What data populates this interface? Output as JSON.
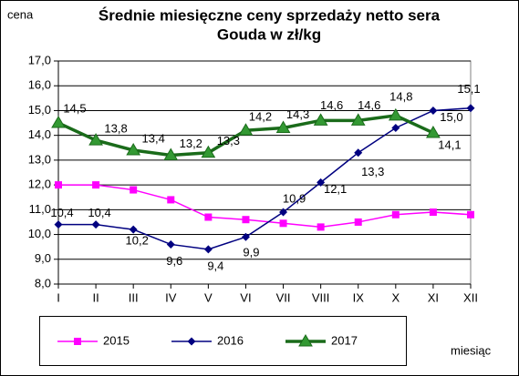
{
  "chart_data": {
    "type": "line",
    "title": [
      "Średnie miesięczne ceny sprzedaży netto sera",
      "Gouda w zł/kg"
    ],
    "y_label": "cena",
    "x_label": "miesiąc",
    "categories": [
      "I",
      "II",
      "III",
      "IV",
      "V",
      "VI",
      "VII",
      "VIII",
      "IX",
      "X",
      "XI",
      "XII"
    ],
    "series": [
      {
        "name": "2015",
        "color": "#ff00ff",
        "marker": "square",
        "values": [
          12.0,
          12.0,
          11.8,
          11.4,
          10.7,
          10.6,
          10.45,
          10.3,
          10.5,
          10.8,
          10.9,
          10.8
        ]
      },
      {
        "name": "2016",
        "color": "#000080",
        "marker": "diamond",
        "values": [
          10.4,
          10.4,
          10.2,
          9.6,
          9.4,
          9.9,
          10.9,
          12.1,
          13.3,
          14.3,
          15.0,
          15.1
        ],
        "value_labels": [
          "10,4",
          "10,4",
          "10,2",
          "9,6",
          "9,4",
          "9,9",
          "10,9",
          "12,1",
          "13,3",
          null,
          "15,0",
          "15,1"
        ]
      },
      {
        "name": "2017",
        "color": "#1a6b1a",
        "marker": "triangle",
        "values": [
          14.5,
          13.8,
          13.4,
          13.2,
          13.3,
          14.2,
          14.3,
          14.6,
          14.6,
          14.8,
          14.1,
          null
        ],
        "value_labels": [
          "14,5",
          "13,8",
          "13,4",
          "13,2",
          "13,3",
          "14,2",
          "14,3",
          "14,6",
          "14,6",
          "14,8",
          "14,1",
          null
        ]
      }
    ],
    "ylim": [
      8,
      17
    ],
    "yticks": [
      {
        "value": 8,
        "label": "8,0"
      },
      {
        "value": 9,
        "label": "9,0"
      },
      {
        "value": 10,
        "label": "10,0"
      },
      {
        "value": 11,
        "label": "11,0"
      },
      {
        "value": 12,
        "label": "12,0"
      },
      {
        "value": 13,
        "label": "13,0"
      },
      {
        "value": 14,
        "label": "14,0"
      },
      {
        "value": 15,
        "label": "15,0"
      },
      {
        "value": 16,
        "label": "16,0"
      },
      {
        "value": 17,
        "label": "17,0"
      }
    ],
    "grid": true,
    "legend": "bottom"
  }
}
